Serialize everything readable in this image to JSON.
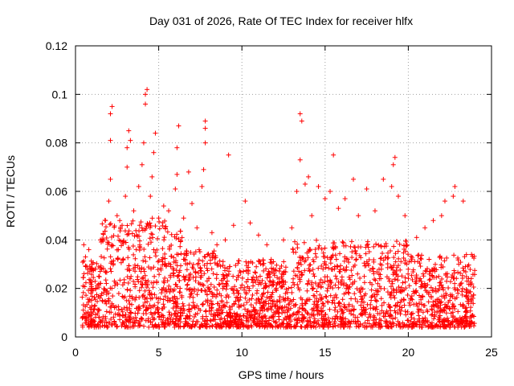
{
  "chart_data": {
    "type": "scatter",
    "title": "Day 031 of 2026, Rate Of TEC Index for receiver hlfx",
    "xlabel": "GPS time / hours",
    "ylabel": "ROTI / TECUs",
    "xlim": [
      0,
      25
    ],
    "ylim": [
      0,
      0.12
    ],
    "x_ticks": [
      "0",
      "5",
      "10",
      "15",
      "20",
      "25"
    ],
    "y_ticks": [
      "0",
      "0.02",
      "0.04",
      "0.06",
      "0.08",
      "0.1",
      "0.12"
    ],
    "grid": true,
    "marker": "+",
    "color": "#ff0000",
    "x_range_observed": [
      0.4,
      24.0
    ],
    "series": [
      {
        "points": [
          [
            0.5,
            0.038
          ],
          [
            0.6,
            0.033
          ],
          [
            0.8,
            0.036
          ],
          [
            1.0,
            0.03
          ],
          [
            1.2,
            0.028
          ],
          [
            1.5,
            0.04
          ],
          [
            1.8,
            0.048
          ],
          [
            2.0,
            0.056
          ],
          [
            2.1,
            0.065
          ],
          [
            2.1,
            0.081
          ],
          [
            2.1,
            0.092
          ],
          [
            2.2,
            0.095
          ],
          [
            2.5,
            0.05
          ],
          [
            2.8,
            0.046
          ],
          [
            3.0,
            0.058
          ],
          [
            3.1,
            0.07
          ],
          [
            3.1,
            0.078
          ],
          [
            3.2,
            0.085
          ],
          [
            3.3,
            0.081
          ],
          [
            3.5,
            0.052
          ],
          [
            3.8,
            0.062
          ],
          [
            4.0,
            0.071
          ],
          [
            4.1,
            0.08
          ],
          [
            4.2,
            0.096
          ],
          [
            4.2,
            0.1
          ],
          [
            4.3,
            0.102
          ],
          [
            4.5,
            0.058
          ],
          [
            4.6,
            0.066
          ],
          [
            4.7,
            0.076
          ],
          [
            4.8,
            0.084
          ],
          [
            5.0,
            0.049
          ],
          [
            5.3,
            0.054
          ],
          [
            5.6,
            0.052
          ],
          [
            6.0,
            0.061
          ],
          [
            6.1,
            0.067
          ],
          [
            6.1,
            0.078
          ],
          [
            6.2,
            0.087
          ],
          [
            6.5,
            0.049
          ],
          [
            6.8,
            0.068
          ],
          [
            7.0,
            0.055
          ],
          [
            7.3,
            0.045
          ],
          [
            7.6,
            0.062
          ],
          [
            7.7,
            0.069
          ],
          [
            7.8,
            0.08
          ],
          [
            7.8,
            0.086
          ],
          [
            7.8,
            0.089
          ],
          [
            8.2,
            0.043
          ],
          [
            8.5,
            0.038
          ],
          [
            9.2,
            0.075
          ],
          [
            9.0,
            0.04
          ],
          [
            9.5,
            0.046
          ],
          [
            10.2,
            0.056
          ],
          [
            10.5,
            0.047
          ],
          [
            11.0,
            0.042
          ],
          [
            11.5,
            0.038
          ],
          [
            12.5,
            0.04
          ],
          [
            13.0,
            0.045
          ],
          [
            13.3,
            0.06
          ],
          [
            13.5,
            0.073
          ],
          [
            13.6,
            0.089
          ],
          [
            13.5,
            0.092
          ],
          [
            13.8,
            0.063
          ],
          [
            14.0,
            0.066
          ],
          [
            14.2,
            0.05
          ],
          [
            14.6,
            0.062
          ],
          [
            15.0,
            0.057
          ],
          [
            15.3,
            0.06
          ],
          [
            15.5,
            0.075
          ],
          [
            15.8,
            0.053
          ],
          [
            16.2,
            0.057
          ],
          [
            16.7,
            0.065
          ],
          [
            17.0,
            0.05
          ],
          [
            17.5,
            0.061
          ],
          [
            18.0,
            0.052
          ],
          [
            18.5,
            0.065
          ],
          [
            19.0,
            0.062
          ],
          [
            19.1,
            0.071
          ],
          [
            19.2,
            0.074
          ],
          [
            19.4,
            0.058
          ],
          [
            19.8,
            0.05
          ],
          [
            20.5,
            0.041
          ],
          [
            21.0,
            0.045
          ],
          [
            21.5,
            0.048
          ],
          [
            22.0,
            0.05
          ],
          [
            22.2,
            0.056
          ],
          [
            22.7,
            0.058
          ],
          [
            22.8,
            0.062
          ],
          [
            23.3,
            0.056
          ],
          [
            23.8,
            0.034
          ]
        ]
      }
    ]
  }
}
